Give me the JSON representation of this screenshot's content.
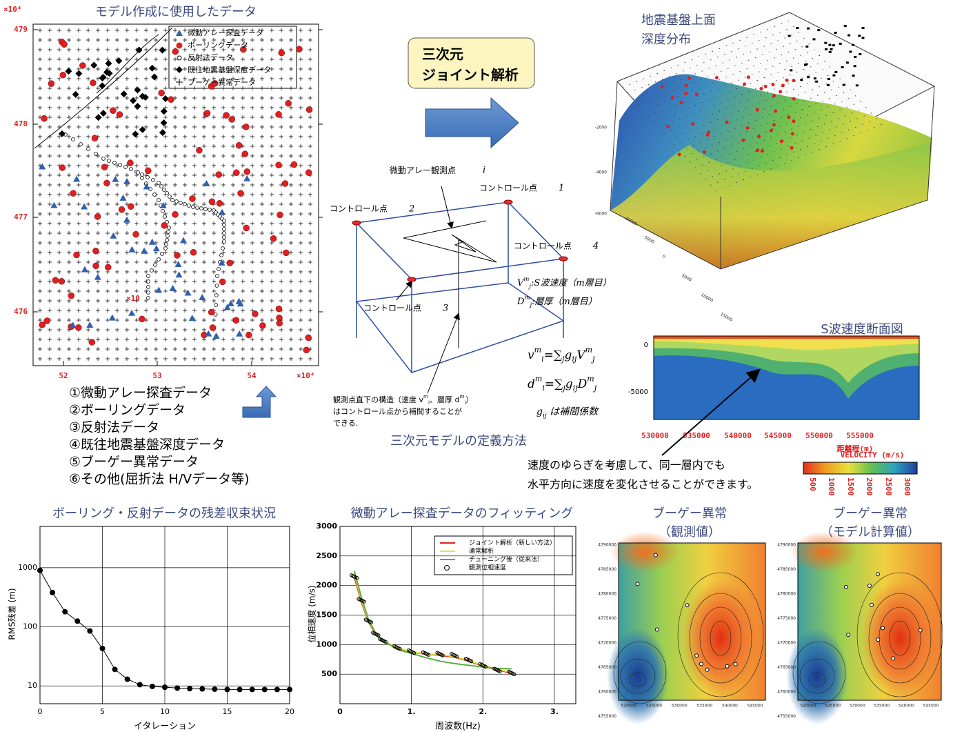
{
  "data_map": {
    "title": "モデル作成に使用したデータ",
    "y_exponent": "×10⁴",
    "x_exponent": "×10⁴",
    "yticks": [
      "479",
      "478",
      "477",
      "476"
    ],
    "xticks": [
      "52",
      "53",
      "54"
    ],
    "inner_note": "×10",
    "legend": [
      "微動アレー探査データ",
      "ボーリングデータ",
      "反射法データ",
      "既往地震基盤深度データ",
      "ブーゲー異常データ"
    ]
  },
  "data_list": [
    "①微動アレー探査データ",
    "②ボーリングデータ",
    "③反射法データ",
    "④既往地震基盤深度データ",
    "⑤ブーゲー異常データ",
    "⑥その他(屈折法 H/Vデータ等)"
  ],
  "joint_box": [
    "三次元",
    "ジョイント解析"
  ],
  "model_definition": {
    "title": "三次元モデルの定義方法",
    "observation_point": {
      "label": "微動アレー観測点",
      "index": "i"
    },
    "control_points": [
      {
        "label": "コントロール点",
        "index": "1"
      },
      {
        "label": "コントロール点",
        "index": "2"
      },
      {
        "label": "コントロール点",
        "index": "3"
      },
      {
        "label": "コントロール点",
        "index": "4"
      }
    ],
    "vs_def": {
      "sym": "V",
      "sup": "m",
      "sub": "j",
      "text": ":S波速度（m層目）"
    },
    "thickness_def": {
      "sym": "D",
      "sup": "m",
      "sub": "j",
      "text": ":層厚（m層目）"
    },
    "formula_v": {
      "lhs": "v",
      "lhs_sup": "m",
      "lhs_sub": "i",
      "eq": "=",
      "sum": "∑",
      "sum_sub": "j",
      "g": "g",
      "g_sub": "ij",
      "rhs": "V",
      "rhs_sup": "m",
      "rhs_sub": "j"
    },
    "formula_d": {
      "lhs": "d",
      "lhs_sup": "m",
      "lhs_sub": "i",
      "eq": "=",
      "sum": "∑",
      "sum_sub": "j",
      "g": "g",
      "g_sub": "ij",
      "rhs": "D",
      "rhs_sup": "m",
      "rhs_sub": "j"
    },
    "coef_note": {
      "g": "g",
      "sub": "ij",
      "text": " は補間係数"
    },
    "note": {
      "text1": "観測点直下の構造（速度 ",
      "v": "v",
      "v_sup": "m",
      "v_sub": "i",
      "text2": "、層厚 ",
      "d": "d",
      "d_sup": "m",
      "d_sub": "i",
      "text3": "）",
      "line2": "はコントロール点から補間することが",
      "line3": "できる."
    }
  },
  "surface_3d": {
    "title": [
      "地震基盤上面",
      "深度分布"
    ],
    "z_ticks": [
      "-2000",
      "-4000",
      "-6000"
    ],
    "x_ticks": [
      "-10000",
      "-5000",
      "0",
      "5000",
      "10000",
      "15000"
    ]
  },
  "s_section": {
    "title": "S波速度断面図",
    "yticks": [
      "0",
      "-5000"
    ],
    "xticks": [
      "530000",
      "535000",
      "540000",
      "545000",
      "550000",
      "555000"
    ],
    "xlabel": "距離程(m)",
    "colorbar_label": "VELOCITY (m/s)",
    "colorbar_ticks": [
      "500",
      "1000",
      "1500",
      "2000",
      "2500",
      "3000"
    ]
  },
  "annotation": [
    "速度のゆらぎを考慮して、同一層内でも",
    "水平方向に速度を変化させることができます。"
  ],
  "bouguer": {
    "observed_title": [
      "ブーゲー異常",
      "（観測値）"
    ],
    "model_title": [
      "ブーゲー異常",
      "（モデル計算値）"
    ],
    "yticks": [
      "4790000",
      "4785000",
      "4780000",
      "4775000",
      "4770000",
      "4765000",
      "4760000",
      "4755000"
    ],
    "xticks": [
      "520000",
      "525000",
      "530000",
      "535000",
      "540000",
      "545000"
    ]
  },
  "chart_data": [
    {
      "type": "line",
      "title": "ボーリング・反射データの残差収束状況",
      "xlabel": "イタレーション",
      "ylabel": "RMS残差 (m)",
      "x": [
        0,
        1,
        2,
        3,
        4,
        5,
        6,
        7,
        8,
        9,
        10,
        11,
        12,
        13,
        14,
        15,
        16,
        17,
        18,
        19,
        20
      ],
      "values": [
        900,
        380,
        180,
        125,
        85,
        43,
        19,
        13,
        10.5,
        9.8,
        9.5,
        9.2,
        9.0,
        8.9,
        8.8,
        8.7,
        8.7,
        8.7,
        8.7,
        8.7,
        8.7
      ],
      "color": "#000000",
      "marker": "circle",
      "xlim": [
        0,
        20
      ],
      "xticks": [
        0,
        5,
        10,
        15,
        20
      ],
      "ylim": [
        5,
        5000
      ],
      "yticks": [
        10,
        100,
        1000
      ],
      "log_y": true,
      "grid": true
    },
    {
      "type": "line",
      "title": "微動アレー探査データのフィッティング",
      "xlabel": "周波数(Hz)",
      "ylabel": "位相速度 (m/s)",
      "x": [
        0.2,
        0.3,
        0.4,
        0.5,
        0.6,
        0.8,
        1.0,
        1.2,
        1.4,
        1.6,
        1.8,
        2.0,
        2.2,
        2.4
      ],
      "xlim": [
        0,
        3.3
      ],
      "xticks": [
        {
          "value": 0,
          "label": "0"
        },
        {
          "value": 1,
          "label": "1."
        },
        {
          "value": 2,
          "label": "2."
        },
        {
          "value": 3,
          "label": "3."
        }
      ],
      "ylim": [
        0,
        3000
      ],
      "yticks": [
        500,
        1000,
        1500,
        2000,
        2500,
        3000
      ],
      "grid": true,
      "series": [
        {
          "name": "ジョイント解析（新しい方法）",
          "color": "#e02020",
          "values": [
            2150,
            1720,
            1380,
            1170,
            1060,
            940,
            870,
            840,
            820,
            790,
            720,
            640,
            570,
            520
          ]
        },
        {
          "name": "通常解析",
          "color": "#e8e040",
          "values": [
            2200,
            1750,
            1400,
            1180,
            1070,
            950,
            875,
            845,
            830,
            800,
            730,
            650,
            580,
            530
          ]
        },
        {
          "name": "チューニング後（従来法）",
          "color": "#50b040",
          "values": [
            2250,
            1800,
            1420,
            1190,
            1070,
            920,
            850,
            780,
            720,
            680,
            650,
            620,
            600,
            590
          ]
        },
        {
          "name": "観測位相速度",
          "color": "#000000",
          "marker": "circle",
          "values": [
            2150,
            1750,
            1400,
            1180,
            1070,
            950,
            880,
            850,
            840,
            820,
            740,
            650,
            570,
            520
          ]
        }
      ]
    }
  ]
}
